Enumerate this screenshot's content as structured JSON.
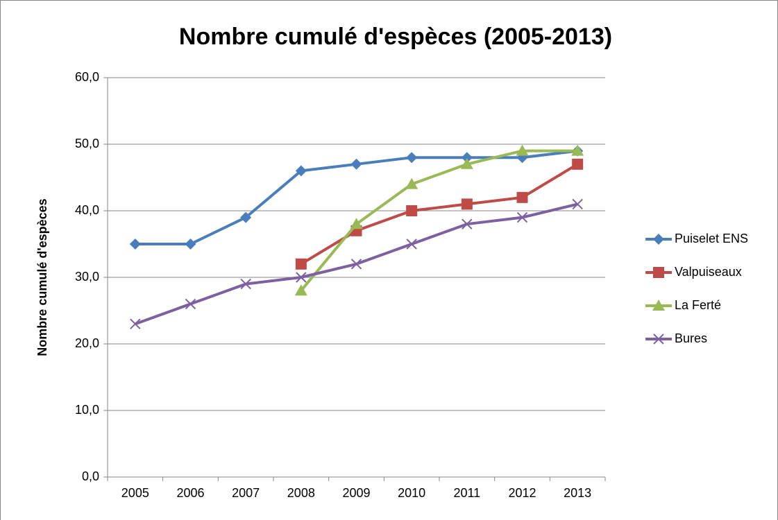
{
  "chart_data": {
    "type": "line",
    "title": "Nombre cumulé d'espèces (2005-2013)",
    "y_label": "Nombre cumulé d'espèces",
    "categories": [
      "2005",
      "2006",
      "2007",
      "2008",
      "2009",
      "2010",
      "2011",
      "2012",
      "2013"
    ],
    "series": [
      {
        "name": "Puiselet ENS",
        "color": "#4a7ebb",
        "marker": "diamond",
        "values": [
          35,
          35,
          39,
          46,
          47,
          48,
          48,
          48,
          49
        ]
      },
      {
        "name": "Valpuiseaux",
        "color": "#be4b48",
        "marker": "square",
        "values": [
          null,
          null,
          null,
          32,
          37,
          40,
          41,
          42,
          47
        ]
      },
      {
        "name": "La Ferté",
        "color": "#98b954",
        "marker": "triangle",
        "values": [
          null,
          null,
          null,
          28,
          38,
          44,
          47,
          49,
          49
        ]
      },
      {
        "name": "Bures",
        "color": "#7d60a0",
        "marker": "x",
        "values": [
          23,
          26,
          29,
          30,
          32,
          35,
          38,
          39,
          41
        ]
      }
    ],
    "ylim": [
      0,
      60
    ],
    "yticks": [
      {
        "value": 0,
        "label": "0,0"
      },
      {
        "value": 10,
        "label": "10,0"
      },
      {
        "value": 20,
        "label": "20,0"
      },
      {
        "value": 30,
        "label": "30,0"
      },
      {
        "value": 40,
        "label": "40,0"
      },
      {
        "value": 50,
        "label": "50,0"
      },
      {
        "value": 60,
        "label": "60,0"
      }
    ],
    "grid": true,
    "legend": "right"
  }
}
